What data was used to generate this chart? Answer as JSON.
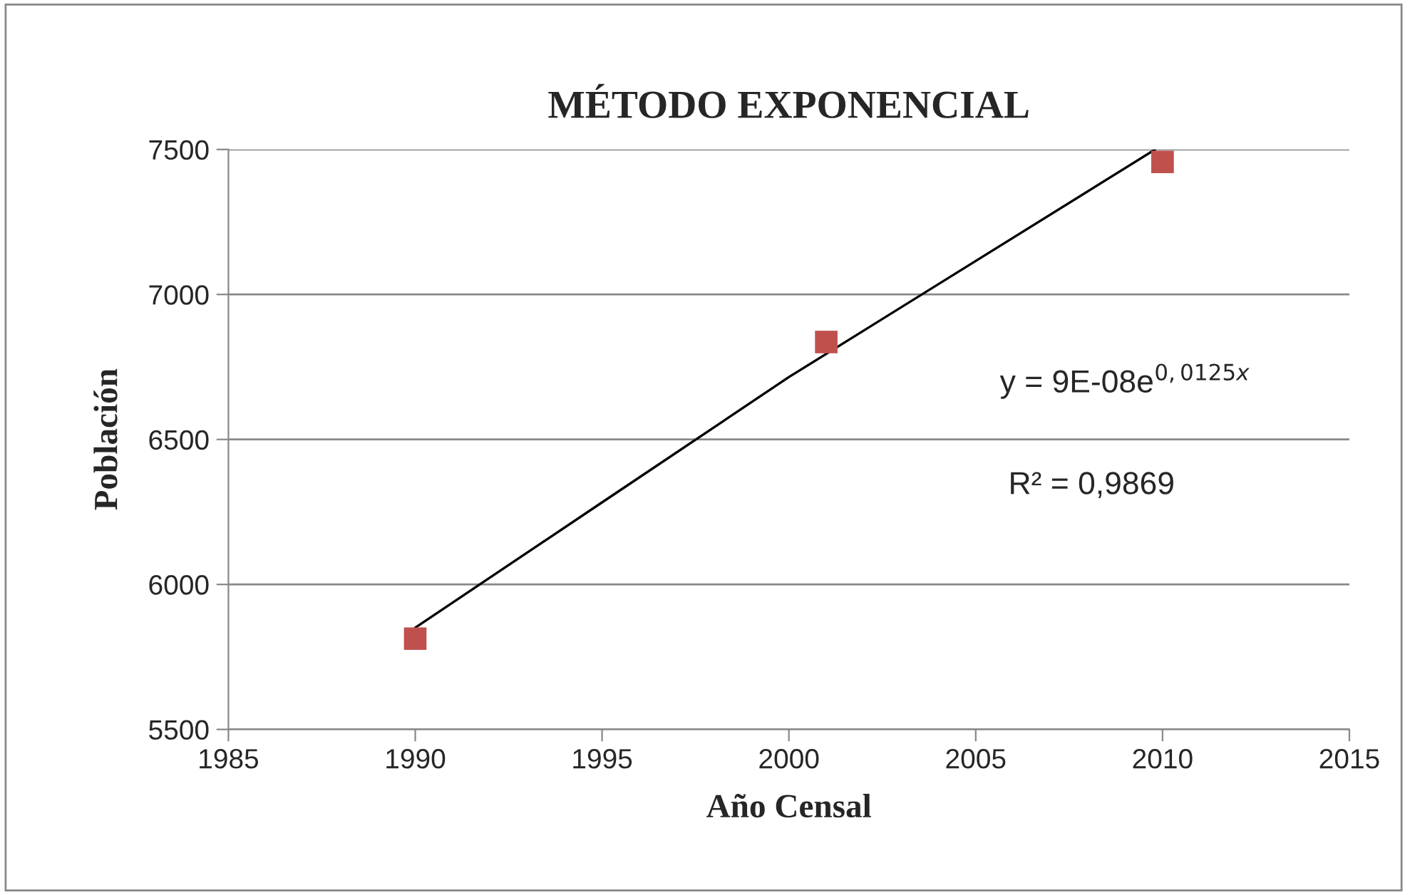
{
  "chart_data": {
    "type": "scatter",
    "title": "MÉTODO EXPONENCIAL",
    "xlabel": "Año Censal",
    "ylabel": "Población",
    "x": [
      1990,
      2001,
      2010
    ],
    "series": [
      {
        "color": "#c0504d",
        "marker": "square",
        "values": [
          5813,
          6836,
          7457
        ]
      },
      {
        "type": "line",
        "color": "#000000",
        "marker": "none",
        "line_style": "solid",
        "x": [
          1990,
          1995,
          2000,
          2009.8
        ],
        "values": [
          5851,
          6283,
          6715,
          7500
        ]
      }
    ],
    "annotations": [
      "y = 9E-08e$^{0,0125x}$",
      "R² = 0,9869"
    ],
    "xlim": [
      1985,
      2015
    ],
    "xticks": [
      1985,
      1990,
      1995,
      2000,
      2005,
      2010,
      2015
    ],
    "ylim": [
      5500,
      7500
    ],
    "yticks": [
      5500,
      6000,
      6500,
      7000,
      7500
    ],
    "grid": "y",
    "legend": false
  }
}
